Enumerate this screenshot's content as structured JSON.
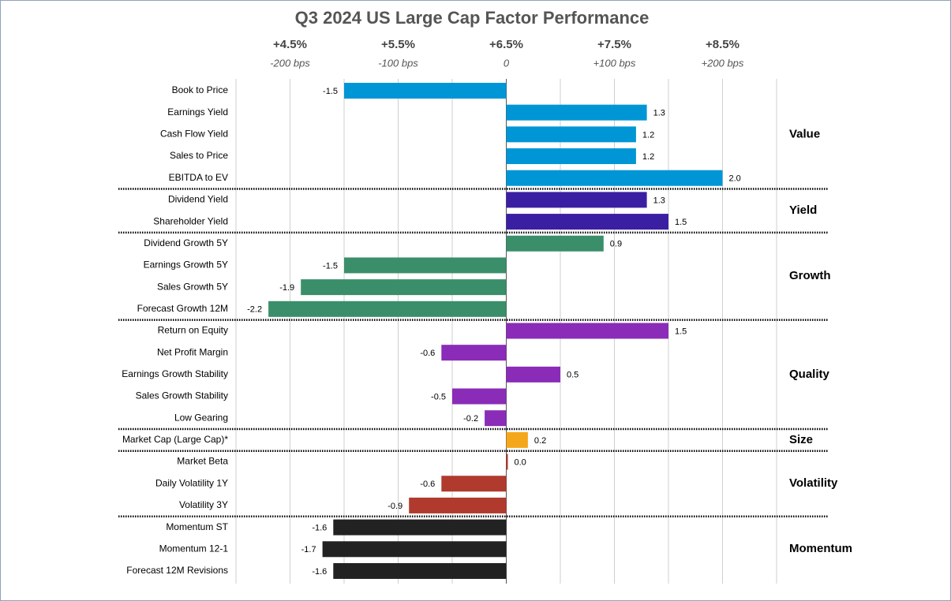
{
  "chart_data": {
    "type": "bar",
    "orientation": "horizontal",
    "title": "Q3 2024 US Large Cap Factor Performance",
    "xlim": [
      -2.5,
      2.5
    ],
    "xticks": [
      {
        "value": -2,
        "label": "+4.5%"
      },
      {
        "value": -1,
        "label": "+5.5%"
      },
      {
        "value": 0,
        "label": "+6.5%"
      },
      {
        "value": 1,
        "label": "+7.5%"
      },
      {
        "value": 2,
        "label": "+8.5%"
      }
    ],
    "x_minor_ticks": [
      -2.5,
      -1.5,
      -0.5,
      0.5,
      1.5,
      2.5
    ],
    "x2lim": [
      -250,
      250
    ],
    "x2ticks": [
      {
        "value": -200,
        "label": "-200 bps"
      },
      {
        "value": -100,
        "label": "-100 bps"
      },
      0,
      {
        "value": 100,
        "label": "+100 bps"
      },
      {
        "value": 200,
        "label": "+200 bps"
      }
    ],
    "grid": true,
    "series": [
      {
        "name": "Value",
        "color": "#0096d6",
        "categories": [
          "Book to Price",
          "Earnings Yield",
          "Cash Flow Yield",
          "Sales to Price",
          "EBITDA to EV"
        ],
        "values": [
          -1.5,
          1.3,
          1.2,
          1.2,
          2.0
        ],
        "value_labels": [
          "-1.5",
          "1.3",
          "1.2",
          "1.2",
          "2.0"
        ]
      },
      {
        "name": "Yield",
        "color": "#3b1fa3",
        "categories": [
          "Dividend Yield",
          "Shareholder Yield"
        ],
        "values": [
          1.3,
          1.5
        ],
        "value_labels": [
          "1.3",
          "1.5"
        ]
      },
      {
        "name": "Growth",
        "color": "#3a8f6a",
        "categories": [
          "Dividend Growth 5Y",
          "Earnings Growth 5Y",
          "Sales Growth 5Y",
          "Forecast Growth 12M"
        ],
        "values": [
          0.9,
          -1.5,
          -1.9,
          -2.2
        ],
        "value_labels": [
          "0.9",
          "-1.5",
          "-1.9",
          "-2.2"
        ]
      },
      {
        "name": "Quality",
        "color": "#8a2cb8",
        "categories": [
          "Return on Equity",
          "Net Profit Margin",
          "Earnings Growth Stability",
          "Sales Growth Stability",
          "Low Gearing"
        ],
        "values": [
          1.5,
          -0.6,
          0.5,
          -0.5,
          -0.2
        ],
        "value_labels": [
          "1.5",
          "-0.6",
          "0.5",
          "-0.5",
          "-0.2"
        ]
      },
      {
        "name": "Size",
        "color": "#f5a71c",
        "categories": [
          "Market Cap (Large Cap)*"
        ],
        "values": [
          0.2
        ],
        "value_labels": [
          "0.2"
        ]
      },
      {
        "name": "Volatility",
        "color": "#b03a2e",
        "categories": [
          "Market Beta",
          "Daily Volatility 1Y",
          "Volatility 3Y"
        ],
        "values": [
          0.0,
          -0.6,
          -0.9
        ],
        "value_labels": [
          "0.0",
          "-0.6",
          "-0.9"
        ]
      },
      {
        "name": "Momentum",
        "color": "#222222",
        "categories": [
          "Momentum ST",
          "Momentum 12-1",
          "Forecast 12M Revisions"
        ],
        "values": [
          -1.6,
          -1.7,
          -1.6
        ],
        "value_labels": [
          "-1.6",
          "-1.7",
          "-1.6"
        ]
      }
    ]
  }
}
